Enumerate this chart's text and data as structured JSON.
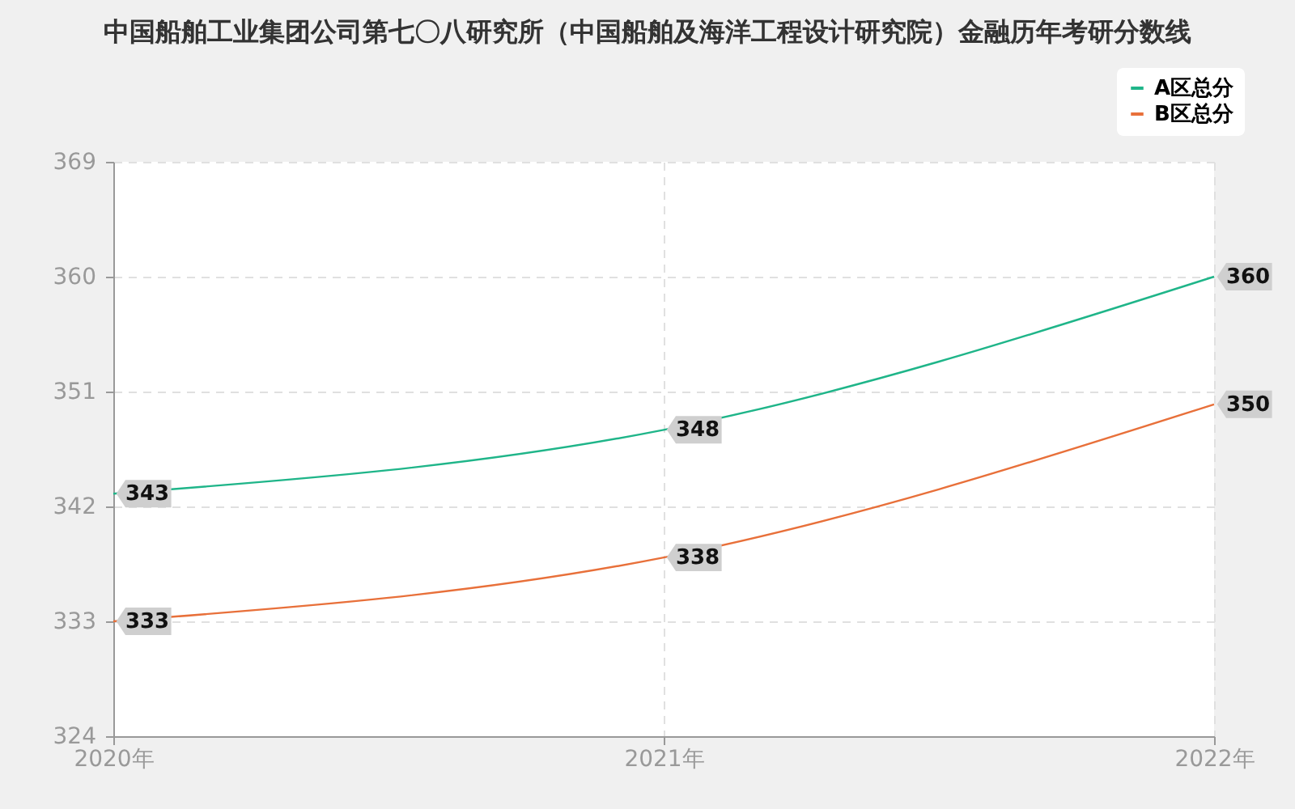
{
  "chart_data": {
    "type": "line",
    "title": "中国船舶工业集团公司第七〇八研究所（中国船舶及海洋工程设计研究院）金融历年考研分数线",
    "categories": [
      "2020年",
      "2021年",
      "2022年"
    ],
    "series": [
      {
        "name": "A区总分",
        "color": "#1fb589",
        "values": [
          343,
          348,
          360
        ]
      },
      {
        "name": "B区总分",
        "color": "#e8703a",
        "values": [
          333,
          338,
          350
        ]
      }
    ],
    "ylim": [
      324,
      369
    ],
    "yticks": [
      324,
      333,
      342,
      351,
      360,
      369
    ],
    "grid": true,
    "legend": "top right",
    "data_labels": true,
    "marker": "none",
    "line_style": "solid"
  }
}
